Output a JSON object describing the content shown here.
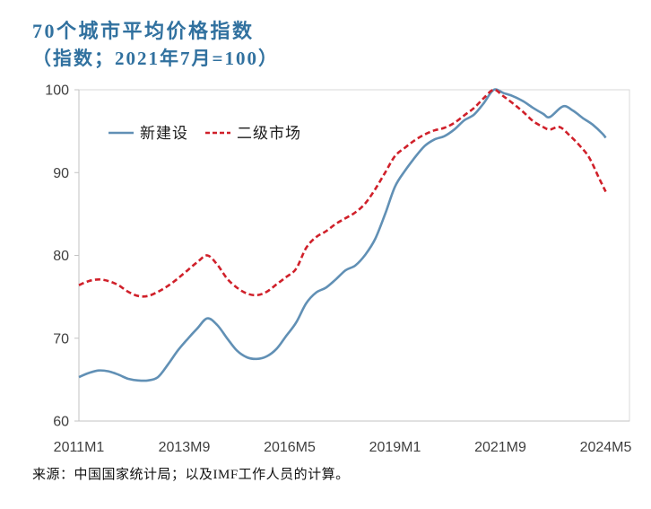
{
  "header": {
    "title": "70个城市平均价格指数",
    "subtitle": "（指数；2021年7月=100）",
    "title_color": "#31719f"
  },
  "source_note": "来源：中国国家统计局；以及IMF工作人员的计算。",
  "chart_data": {
    "type": "line",
    "title": "70个城市平均价格指数",
    "subtitle": "（指数；2021年7月=100）",
    "grid": "off",
    "legend_position": "inside-top-left",
    "x_axis": {
      "unit": "months since 2011M1",
      "total_months": 160,
      "tick_months": [
        0,
        32,
        64,
        96,
        128,
        160
      ],
      "tick_labels": [
        "2011M1",
        "2013M9",
        "2016M5",
        "2019M1",
        "2021M9",
        "2024M5"
      ]
    },
    "y_axis": {
      "min": 60,
      "max": 100,
      "ticks": [
        100,
        90,
        80,
        70,
        60
      ]
    },
    "colors": {
      "axis_line": "#c3c3c3",
      "plot_border": "#dadada",
      "tick_text": "#3f3f3f"
    },
    "series": [
      {
        "id": "new-construction",
        "name": "新建设",
        "color": "#6190b5",
        "style": "solid",
        "dash": "",
        "points": [
          [
            0,
            65.3
          ],
          [
            3,
            65.8
          ],
          [
            6,
            66.1
          ],
          [
            9,
            66.0
          ],
          [
            12,
            65.6
          ],
          [
            15,
            65.1
          ],
          [
            18,
            64.9
          ],
          [
            21,
            64.9
          ],
          [
            24,
            65.3
          ],
          [
            27,
            66.8
          ],
          [
            30,
            68.5
          ],
          [
            33,
            69.9
          ],
          [
            36,
            71.2
          ],
          [
            39,
            72.4
          ],
          [
            42,
            71.6
          ],
          [
            45,
            70.0
          ],
          [
            48,
            68.5
          ],
          [
            51,
            67.7
          ],
          [
            54,
            67.5
          ],
          [
            57,
            67.8
          ],
          [
            60,
            68.7
          ],
          [
            63,
            70.3
          ],
          [
            66,
            71.9
          ],
          [
            69,
            74.2
          ],
          [
            72,
            75.5
          ],
          [
            75,
            76.1
          ],
          [
            78,
            77.1
          ],
          [
            81,
            78.2
          ],
          [
            84,
            78.8
          ],
          [
            87,
            80.1
          ],
          [
            90,
            82.0
          ],
          [
            93,
            85.0
          ],
          [
            96,
            88.3
          ],
          [
            99,
            90.2
          ],
          [
            102,
            91.8
          ],
          [
            105,
            93.2
          ],
          [
            108,
            94.0
          ],
          [
            111,
            94.4
          ],
          [
            114,
            95.2
          ],
          [
            117,
            96.3
          ],
          [
            120,
            97.0
          ],
          [
            123,
            98.4
          ],
          [
            126,
            100.0
          ],
          [
            129,
            99.6
          ],
          [
            132,
            99.2
          ],
          [
            135,
            98.6
          ],
          [
            138,
            97.8
          ],
          [
            141,
            97.1
          ],
          [
            143,
            96.7
          ],
          [
            147,
            98.0
          ],
          [
            150,
            97.5
          ],
          [
            153,
            96.6
          ],
          [
            156,
            95.8
          ],
          [
            159,
            94.7
          ],
          [
            160,
            94.2
          ]
        ]
      },
      {
        "id": "secondary-market",
        "name": "二级市场",
        "color": "#d0202a",
        "style": "dashed",
        "dash": "6 3.5",
        "points": [
          [
            0,
            76.4
          ],
          [
            3,
            76.9
          ],
          [
            6,
            77.1
          ],
          [
            9,
            76.9
          ],
          [
            12,
            76.4
          ],
          [
            15,
            75.6
          ],
          [
            18,
            75.1
          ],
          [
            21,
            75.1
          ],
          [
            24,
            75.6
          ],
          [
            27,
            76.3
          ],
          [
            30,
            77.2
          ],
          [
            33,
            78.2
          ],
          [
            36,
            79.2
          ],
          [
            39,
            80.0
          ],
          [
            42,
            78.9
          ],
          [
            45,
            77.2
          ],
          [
            48,
            76.1
          ],
          [
            51,
            75.4
          ],
          [
            54,
            75.2
          ],
          [
            57,
            75.6
          ],
          [
            60,
            76.5
          ],
          [
            63,
            77.4
          ],
          [
            66,
            78.4
          ],
          [
            69,
            80.9
          ],
          [
            72,
            82.2
          ],
          [
            75,
            82.9
          ],
          [
            78,
            83.8
          ],
          [
            81,
            84.5
          ],
          [
            84,
            85.2
          ],
          [
            87,
            86.3
          ],
          [
            90,
            88.0
          ],
          [
            93,
            90.0
          ],
          [
            96,
            92.0
          ],
          [
            99,
            93.0
          ],
          [
            102,
            93.9
          ],
          [
            105,
            94.6
          ],
          [
            108,
            95.1
          ],
          [
            111,
            95.4
          ],
          [
            114,
            96.0
          ],
          [
            117,
            96.9
          ],
          [
            120,
            97.8
          ],
          [
            123,
            99.0
          ],
          [
            126,
            100.0
          ],
          [
            129,
            99.2
          ],
          [
            132,
            98.3
          ],
          [
            135,
            97.3
          ],
          [
            138,
            96.2
          ],
          [
            141,
            95.5
          ],
          [
            143,
            95.2
          ],
          [
            146,
            95.5
          ],
          [
            149,
            94.5
          ],
          [
            152,
            93.3
          ],
          [
            155,
            91.8
          ],
          [
            158,
            89.3
          ],
          [
            160,
            87.7
          ]
        ]
      }
    ]
  }
}
